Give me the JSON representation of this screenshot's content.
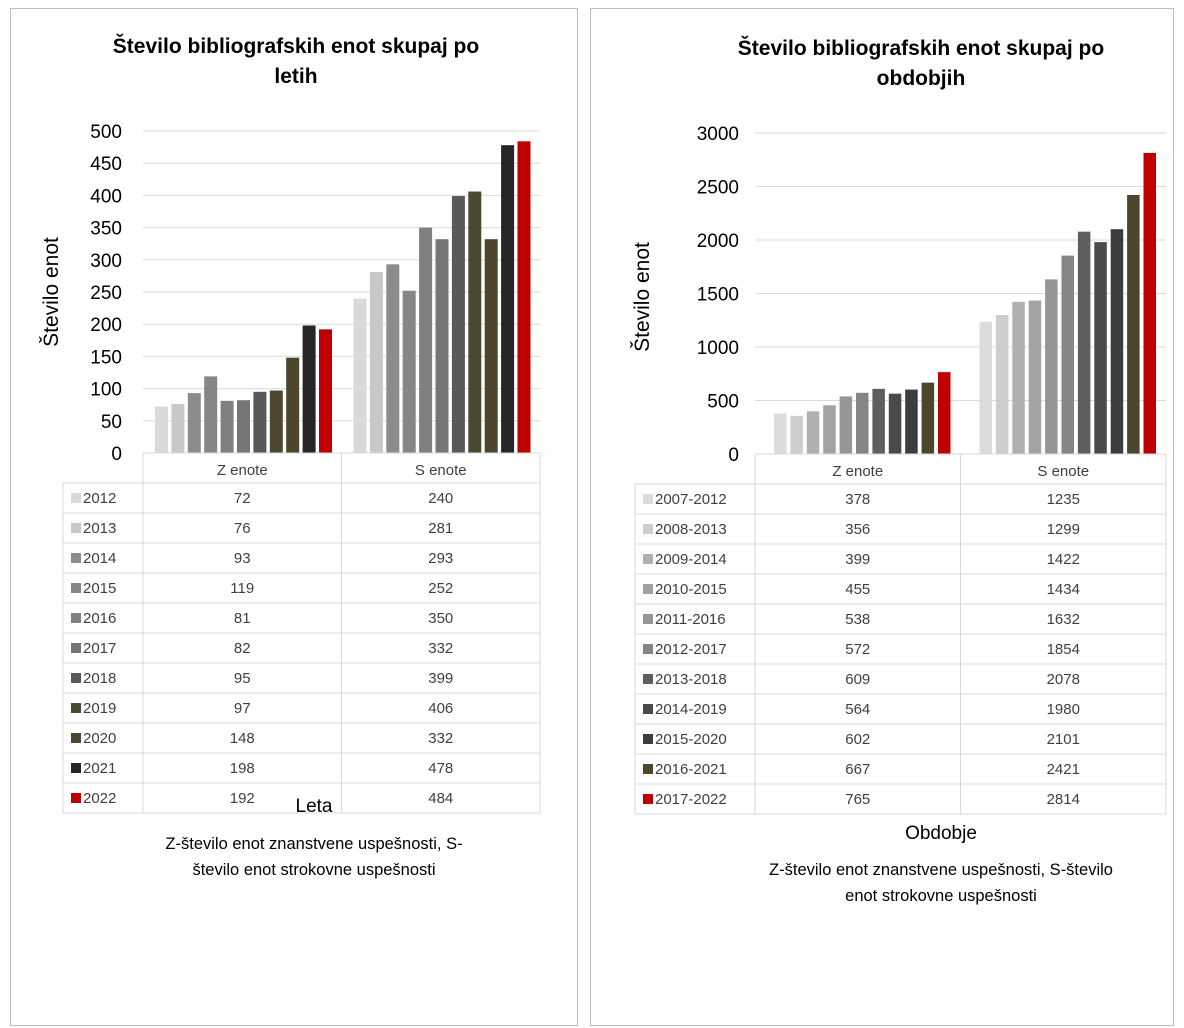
{
  "chart_data": [
    {
      "type": "bar",
      "title_lines": [
        "Število bibliografskih enot skupaj po",
        "letih"
      ],
      "ylabel": "Število enot",
      "xlabel": "Leta",
      "note_lines": [
        "Z-število enot znanstvene uspešnosti, S-",
        "število enot strokovne uspešnosti"
      ],
      "categories": [
        "Z enote",
        "S enote"
      ],
      "ylim": [
        0,
        500
      ],
      "yticks": [
        0,
        50,
        100,
        150,
        200,
        250,
        300,
        350,
        400,
        450,
        500
      ],
      "grid": true,
      "legend_placement": "data table",
      "series": [
        {
          "name": "2012",
          "color": "#d9d9d9",
          "values": [
            72,
            240
          ]
        },
        {
          "name": "2013",
          "color": "#c8c8c8",
          "values": [
            76,
            281
          ]
        },
        {
          "name": "2014",
          "color": "#8c8c8c",
          "values": [
            93,
            293
          ]
        },
        {
          "name": "2015",
          "color": "#868686",
          "values": [
            119,
            252
          ]
        },
        {
          "name": "2016",
          "color": "#808080",
          "values": [
            81,
            350
          ]
        },
        {
          "name": "2017",
          "color": "#767676",
          "values": [
            82,
            332
          ]
        },
        {
          "name": "2018",
          "color": "#595959",
          "values": [
            95,
            399
          ]
        },
        {
          "name": "2019",
          "color": "#4d4832",
          "values": [
            97,
            406
          ]
        },
        {
          "name": "2020",
          "color": "#4b462c",
          "values": [
            148,
            332
          ]
        },
        {
          "name": "2021",
          "color": "#262626",
          "values": [
            198,
            478
          ]
        },
        {
          "name": "2022",
          "color": "#c00000",
          "values": [
            192,
            484
          ]
        }
      ]
    },
    {
      "type": "bar",
      "title_lines": [
        "Število bibliografskih enot skupaj po",
        "obdobjih"
      ],
      "ylabel": "Število enot",
      "xlabel": "Obdobje",
      "note_lines": [
        "Z-število enot znanstvene uspešnosti, S-število",
        "enot strokovne uspešnosti"
      ],
      "categories": [
        "Z enote",
        "S enote"
      ],
      "ylim": [
        0,
        3000
      ],
      "yticks": [
        0,
        500,
        1000,
        1500,
        2000,
        2500,
        3000
      ],
      "grid": true,
      "legend_placement": "data table",
      "series": [
        {
          "name": "2007-2012",
          "color": "#dcdcdc",
          "values": [
            378,
            1235
          ]
        },
        {
          "name": "2008-2013",
          "color": "#cdcdcd",
          "values": [
            356,
            1299
          ]
        },
        {
          "name": "2009-2014",
          "color": "#b0b0b0",
          "values": [
            399,
            1422
          ]
        },
        {
          "name": "2010-2015",
          "color": "#a3a3a3",
          "values": [
            455,
            1434
          ]
        },
        {
          "name": "2011-2016",
          "color": "#969696",
          "values": [
            538,
            1632
          ]
        },
        {
          "name": "2012-2017",
          "color": "#858585",
          "values": [
            572,
            1854
          ]
        },
        {
          "name": "2013-2018",
          "color": "#5f5f5f",
          "values": [
            609,
            2078
          ]
        },
        {
          "name": "2014-2019",
          "color": "#4a4a4a",
          "values": [
            564,
            1980
          ]
        },
        {
          "name": "2015-2020",
          "color": "#3d3d3d",
          "values": [
            602,
            2101
          ]
        },
        {
          "name": "2016-2021",
          "color": "#4b462c",
          "values": [
            667,
            2421
          ]
        },
        {
          "name": "2017-2022",
          "color": "#c00000",
          "values": [
            765,
            2814
          ]
        }
      ]
    }
  ]
}
